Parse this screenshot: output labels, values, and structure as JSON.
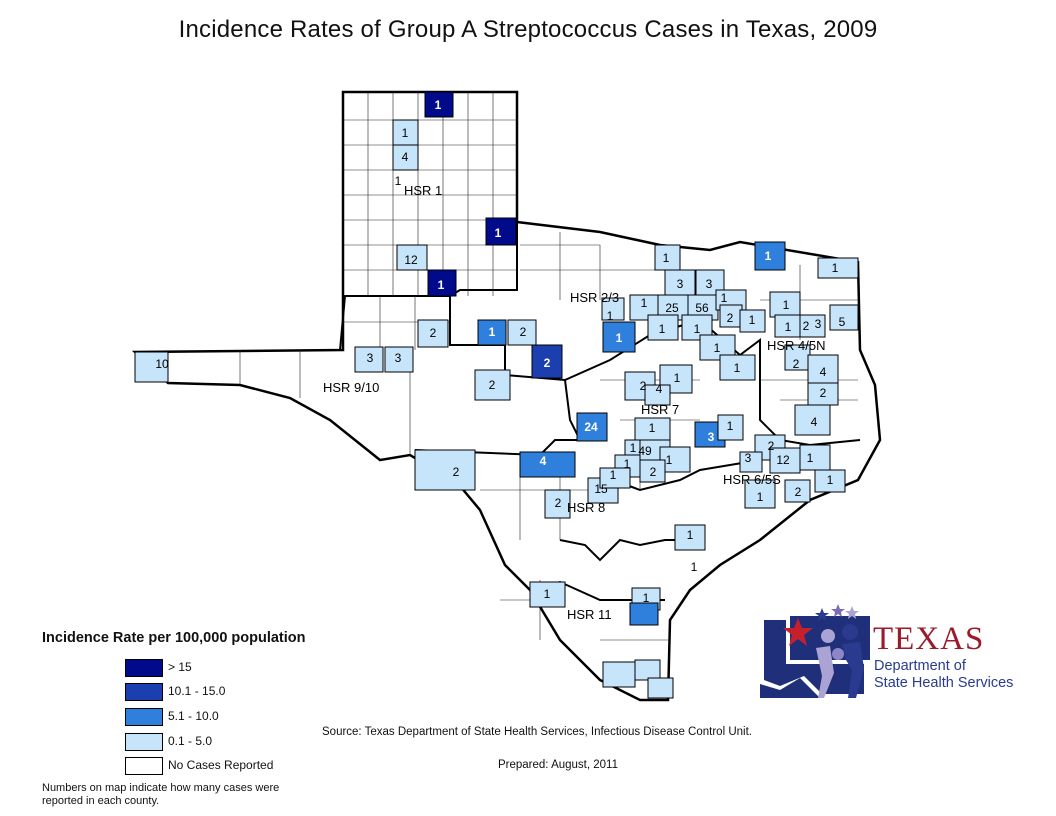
{
  "title": "Incidence Rates of Group A Streptococcus Cases in Texas, 2009",
  "legend": {
    "title": "Incidence Rate per 100,000 population",
    "items": [
      {
        "label": "> 15",
        "color": "#000a8a"
      },
      {
        "label": "10.1 - 15.0",
        "color": "#1b3fae"
      },
      {
        "label": "5.1 - 10.0",
        "color": "#2f7fdc"
      },
      {
        "label": "0.1 - 5.0",
        "color": "#c6e5fb"
      },
      {
        "label": "No Cases Reported",
        "color": "#ffffff"
      }
    ],
    "note": "Numbers on map indicate how many cases were reported in each county."
  },
  "source": "Source: Texas Department of State Health Services, Infectious Disease Control Unit.",
  "prepared": "Prepared: August, 2011",
  "regions": [
    "HSR 1",
    "HSR 2/3",
    "HSR 4/5N",
    "HSR 9/10",
    "HSR 7",
    "HSR 6/5S",
    "HSR 8",
    "HSR 11"
  ],
  "counts": [
    "1",
    "1",
    "4",
    "1",
    "1",
    "12",
    "1",
    "1",
    "1",
    "1",
    "3",
    "3",
    "2",
    "1",
    "25",
    "56",
    "1",
    "2",
    "1",
    "1",
    "1",
    "1",
    "2",
    "3",
    "5",
    "1",
    "1",
    "1",
    "1",
    "2",
    "4",
    "2",
    "4",
    "2",
    "1",
    "2",
    "2",
    "3",
    "3",
    "2",
    "10",
    "1",
    "1",
    "4",
    "1",
    "24",
    "3",
    "1",
    "1",
    "49",
    "1",
    "1",
    "2",
    "2",
    "3",
    "12",
    "1",
    "1",
    "1",
    "2",
    "2",
    "4",
    "2",
    "15",
    "1",
    "1",
    "1",
    "1",
    "1"
  ],
  "logo": {
    "texas": "TEXAS",
    "dept_line1": "Department of",
    "dept_line2": "State Health Services"
  }
}
